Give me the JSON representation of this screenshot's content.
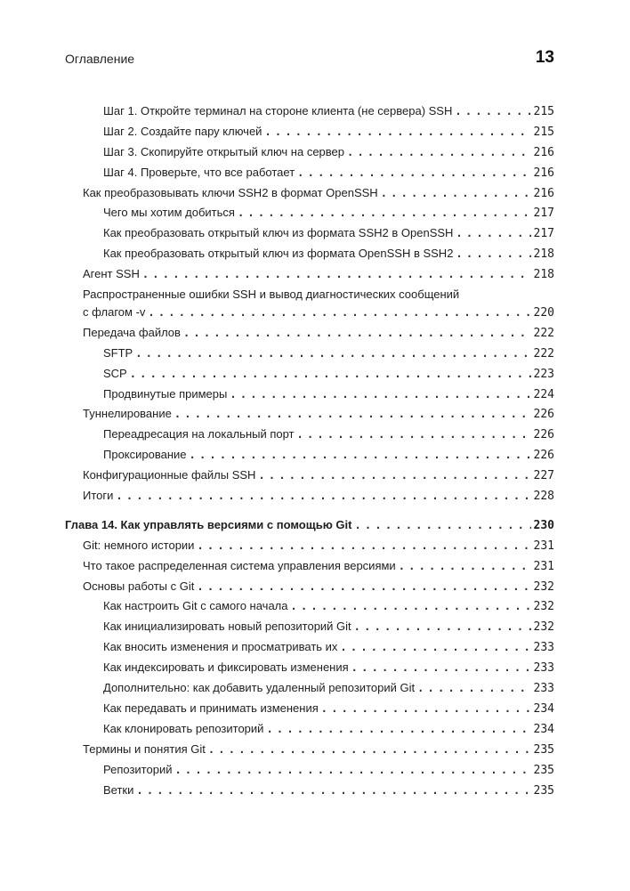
{
  "header": {
    "section_title": "Оглавление",
    "page_number": "13"
  },
  "entries": [
    {
      "level": 2,
      "text": "Шаг 1. Откройте терминал на стороне клиента (не сервера) SSH",
      "page": "215"
    },
    {
      "level": 2,
      "text": "Шаг 2. Создайте пару ключей",
      "page": "215"
    },
    {
      "level": 2,
      "text": "Шаг 3. Скопируйте открытый ключ на сервер",
      "page": "216"
    },
    {
      "level": 2,
      "text": "Шаг 4. Проверьте, что все работает",
      "page": "216"
    },
    {
      "level": 1,
      "text": "Как преобразовывать ключи SSH2 в формат OpenSSH",
      "page": "216"
    },
    {
      "level": 2,
      "text": "Чего мы хотим добиться",
      "page": "217"
    },
    {
      "level": 2,
      "text": "Как преобразовать открытый ключ из формата SSH2 в OpenSSH",
      "page": "217"
    },
    {
      "level": 2,
      "text": "Как преобразовать открытый ключ из формата OpenSSH в SSH2",
      "page": "218"
    },
    {
      "level": 1,
      "text": "Агент SSH",
      "page": "218"
    },
    {
      "level": 1,
      "text": "Распространенные ошибки SSH и вывод диагностических сообщений",
      "cont": "с флагом -v",
      "page": "220"
    },
    {
      "level": 1,
      "text": "Передача файлов",
      "page": "222"
    },
    {
      "level": 2,
      "text": "SFTP",
      "page": "222"
    },
    {
      "level": 2,
      "text": "SCP",
      "page": "223"
    },
    {
      "level": 2,
      "text": "Продвинутые примеры",
      "page": "224"
    },
    {
      "level": 1,
      "text": "Туннелирование",
      "page": "226"
    },
    {
      "level": 2,
      "text": "Переадресация на локальный порт",
      "page": "226"
    },
    {
      "level": 2,
      "text": "Проксирование",
      "page": "226"
    },
    {
      "level": 1,
      "text": "Конфигурационные файлы SSH",
      "page": "227"
    },
    {
      "level": 1,
      "text": "Итоги",
      "page": "228"
    },
    {
      "level": 0,
      "text": "Глава 14. Как управлять версиями с помощью Git",
      "page": "230"
    },
    {
      "level": 1,
      "text": "Git: немного истории",
      "page": "231"
    },
    {
      "level": 1,
      "text": "Что такое распределенная система управления версиями",
      "page": "231"
    },
    {
      "level": 1,
      "text": "Основы работы с Git",
      "page": "232"
    },
    {
      "level": 2,
      "text": "Как настроить Git с самого начала",
      "page": "232"
    },
    {
      "level": 2,
      "text": "Как инициализировать новый репозиторий Git",
      "page": "232"
    },
    {
      "level": 2,
      "text": "Как вносить изменения и просматривать их",
      "page": "233"
    },
    {
      "level": 2,
      "text": "Как индексировать и фиксировать изменения",
      "page": "233"
    },
    {
      "level": 2,
      "text": "Дополнительно: как добавить удаленный репозиторий Git",
      "page": "233"
    },
    {
      "level": 2,
      "text": "Как передавать и принимать изменения",
      "page": "234"
    },
    {
      "level": 2,
      "text": "Как клонировать репозиторий",
      "page": "234"
    },
    {
      "level": 1,
      "text": "Термины и понятия Git",
      "page": "235"
    },
    {
      "level": 2,
      "text": "Репозиторий",
      "page": "235"
    },
    {
      "level": 2,
      "text": "Ветки",
      "page": "235"
    }
  ]
}
